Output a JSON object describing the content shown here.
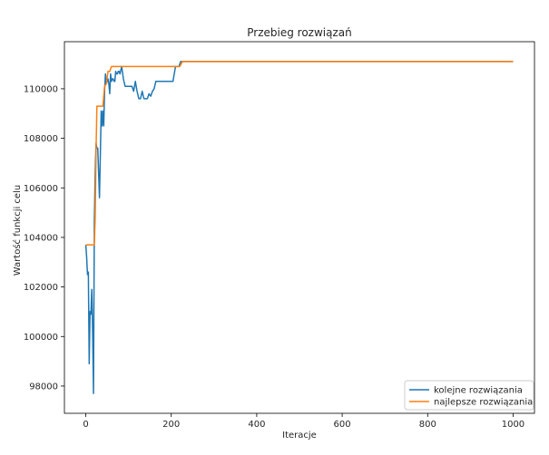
{
  "chart_data": {
    "type": "line",
    "title": "Przebieg rozwiązań",
    "xlabel": "Iteracje",
    "ylabel": "Wartość funkcji celu",
    "xlim": [
      -50,
      1050
    ],
    "ylim": [
      96900,
      111900
    ],
    "x_ticks": [
      0,
      200,
      400,
      600,
      800,
      1000
    ],
    "y_ticks": [
      98000,
      100000,
      102000,
      104000,
      106000,
      108000,
      110000
    ],
    "grid": false,
    "legend_position": "lower-right",
    "colors": {
      "series1": "#1f77b4",
      "series2": "#ff7f0e"
    },
    "series": [
      {
        "name": "kolejne rozwiązania",
        "x": [
          0,
          2,
          4,
          6,
          8,
          10,
          12,
          14,
          16,
          18,
          20,
          22,
          24,
          26,
          28,
          30,
          32,
          34,
          36,
          38,
          40,
          42,
          44,
          46,
          48,
          50,
          52,
          54,
          56,
          58,
          60,
          62,
          64,
          66,
          68,
          70,
          72,
          74,
          76,
          78,
          80,
          84,
          88,
          92,
          96,
          100,
          104,
          108,
          112,
          116,
          120,
          124,
          128,
          132,
          136,
          140,
          144,
          148,
          152,
          156,
          160,
          164,
          168,
          172,
          176,
          180,
          186,
          192,
          198,
          204,
          210,
          214,
          218,
          222,
          226,
          230,
          1000
        ],
        "y": [
          103700,
          103200,
          102500,
          102600,
          98900,
          101000,
          100900,
          101900,
          100200,
          97700,
          104600,
          106600,
          107800,
          107600,
          107600,
          106600,
          105600,
          107300,
          109100,
          108500,
          109100,
          108500,
          109900,
          110600,
          110200,
          110300,
          110400,
          110200,
          109800,
          110600,
          110300,
          110400,
          110400,
          110300,
          110300,
          110700,
          110600,
          110600,
          110700,
          110700,
          110600,
          110900,
          110400,
          110100,
          110100,
          110100,
          110100,
          110100,
          109900,
          110300,
          109900,
          109600,
          109600,
          109900,
          109600,
          109600,
          109600,
          109800,
          109700,
          109900,
          110000,
          110300,
          110300,
          110300,
          110300,
          110300,
          110300,
          110300,
          110300,
          110300,
          110900,
          110900,
          110900,
          111100,
          111100,
          111100,
          111100
        ]
      },
      {
        "name": "najlepsze rozwiązania",
        "x": [
          0,
          20,
          22,
          24,
          26,
          30,
          36,
          40,
          44,
          48,
          52,
          56,
          60,
          64,
          70,
          90,
          100,
          214,
          220,
          226,
          1000
        ],
        "y": [
          103700,
          103700,
          104800,
          107500,
          109300,
          109300,
          109300,
          109300,
          110100,
          110200,
          110700,
          110700,
          110900,
          110900,
          110900,
          110900,
          110900,
          110900,
          110900,
          111100,
          111100
        ]
      }
    ]
  }
}
